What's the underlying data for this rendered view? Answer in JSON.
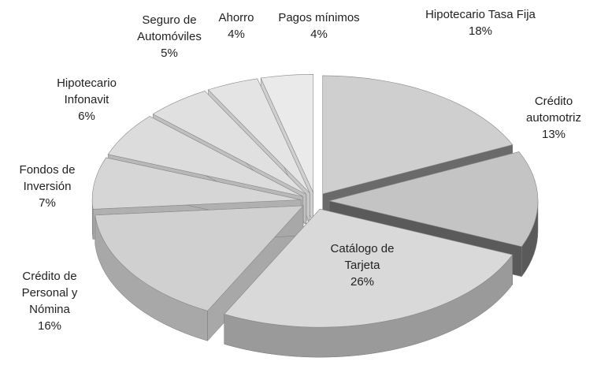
{
  "chart_data": {
    "type": "pie3d",
    "categories": [
      "Hipotecario Tasa Fija",
      "Crédito automotriz",
      "Catálogo de Tarjeta",
      "Crédito de Personal y Nómina",
      "Fondos de Inversión",
      "Hipotecario Infonavit",
      "Seguro de Automóviles",
      "Ahorro",
      "Pagos mínimos"
    ],
    "values": [
      18,
      13,
      26,
      16,
      7,
      6,
      5,
      4,
      4
    ],
    "value_labels": [
      "18%",
      "13%",
      "26%",
      "16%",
      "7%",
      "6%",
      "5%",
      "4%",
      "4%"
    ],
    "colors": [
      "#cfcfcf",
      "#c4c4c4",
      "#d9d9d9",
      "#d0d0d0",
      "#d6d6d6",
      "#dcdcdc",
      "#e0e0e0",
      "#e4e4e4",
      "#eaeaea"
    ],
    "side_colors": [
      "#6a6a6a",
      "#5a5a5a",
      "#9a9a9a",
      "#a8a8a8",
      "#b0b0b0",
      "#b8b8b8",
      "#c0c0c0",
      "#c8c8c8",
      "#d0d0d0"
    ]
  }
}
